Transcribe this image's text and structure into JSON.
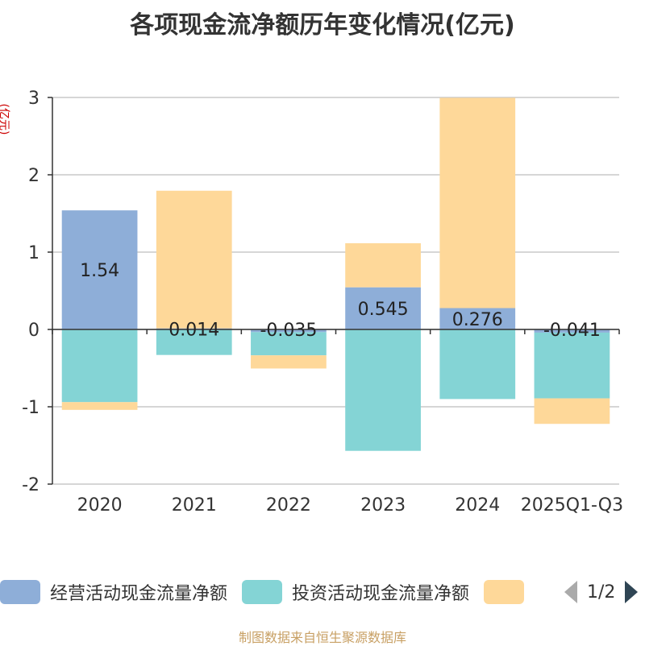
{
  "chart_data": {
    "type": "bar",
    "stacked": true,
    "title": "各项现金流净额历年变化情况(亿元)",
    "ylabel": "(亿元)",
    "ylim": [
      -2,
      3
    ],
    "yticks": [
      -2,
      -1,
      0,
      1,
      2,
      3
    ],
    "categories": [
      "2020",
      "2021",
      "2022",
      "2023",
      "2024",
      "2025Q1-Q3"
    ],
    "series": [
      {
        "name": "经营活动现金流量净额",
        "color": "#8eaed8",
        "values": [
          1.54,
          0.014,
          -0.035,
          0.545,
          0.276,
          -0.041
        ]
      },
      {
        "name": "投资活动现金流量净额",
        "color": "#84d4d5",
        "values": [
          -0.94,
          -0.33,
          -0.3,
          -1.57,
          -0.9,
          -0.85
        ]
      },
      {
        "name": "",
        "color": "#fed899",
        "values": [
          -0.1,
          1.78,
          -0.17,
          0.57,
          2.72,
          -0.33
        ]
      }
    ],
    "data_labels": [
      "1.54",
      "0.014",
      "-0.035",
      "0.545",
      "0.276",
      "-0.041"
    ]
  },
  "legend": {
    "items": [
      {
        "label": "经营活动现金流量净额",
        "color": "#8eaed8"
      },
      {
        "label": "投资活动现金流量净额",
        "color": "#84d4d5"
      },
      {
        "label": "",
        "color": "#fed899"
      }
    ],
    "page_indicator": "1/2"
  },
  "footer": {
    "source": "制图数据来自恒生聚源数据库"
  }
}
